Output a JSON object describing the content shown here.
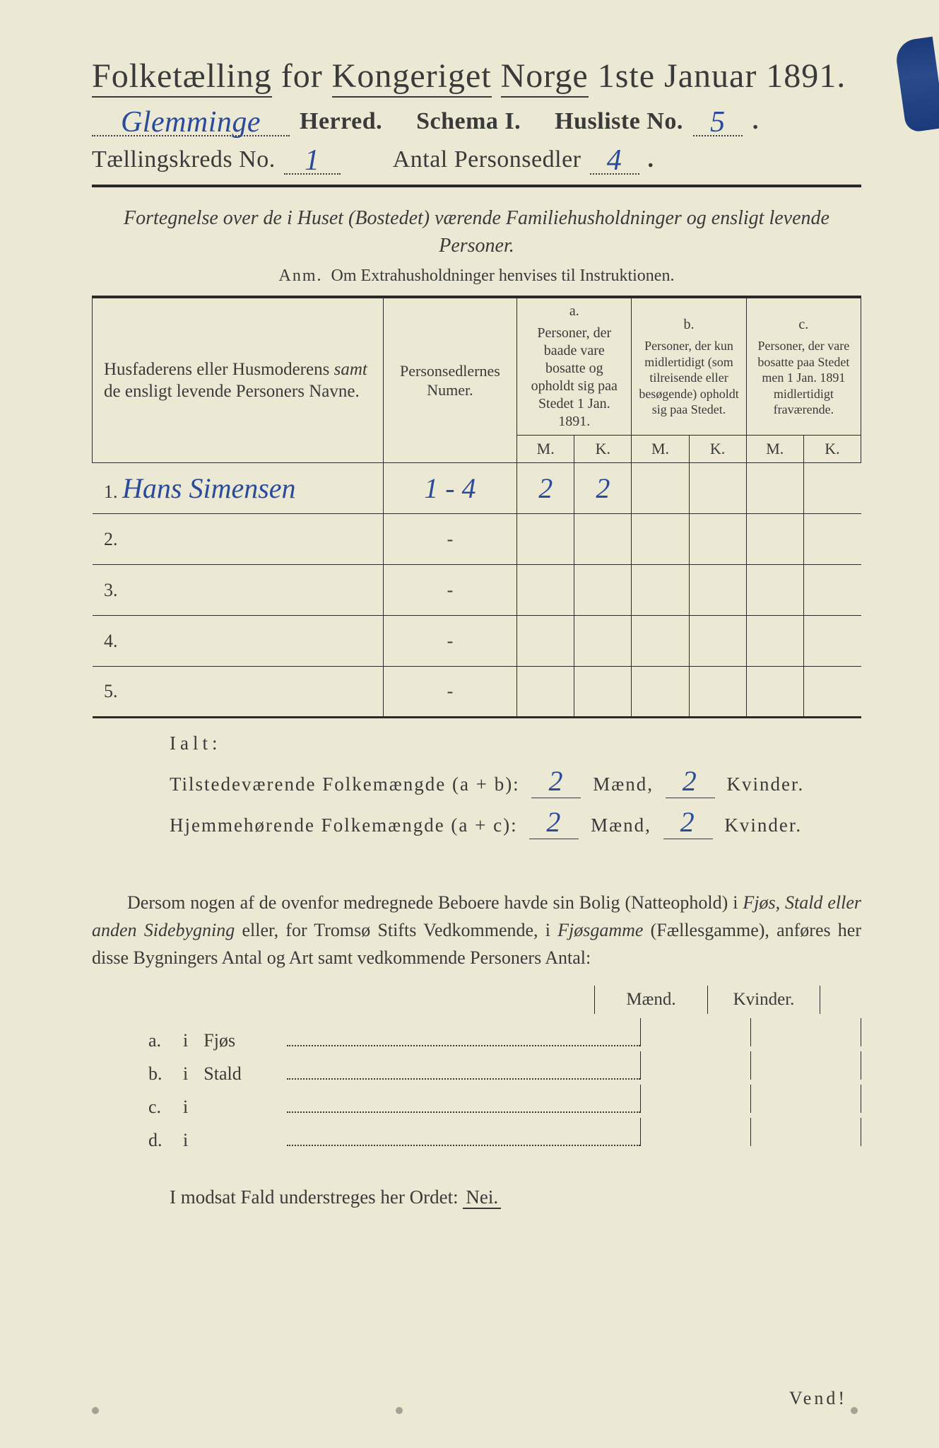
{
  "colors": {
    "paper": "#ebe8d4",
    "ink": "#3a3a3a",
    "ink_dark": "#2a2a2a",
    "handwriting": "#2a4a9a",
    "edge_mark": "#1a3a7a",
    "background": "#1a1a1a"
  },
  "typography": {
    "title_fontsize": 48,
    "body_fontsize": 26,
    "header_fontsize": 34,
    "table_header_fontsize": 20,
    "handwriting_fontsize": 40
  },
  "title": {
    "text": "Folketælling for Kongeriget Norge 1ste Januar 1891.",
    "words_underlined": [
      "Folketælling",
      "Kongeriget",
      "Norge"
    ]
  },
  "header": {
    "herred_handwritten": "Glemminge",
    "herred_label": "Herred.",
    "schema_label": "Schema I.",
    "husliste_label": "Husliste No.",
    "husliste_no_handwritten": "5",
    "taellingskreds_label": "Tællingskreds No.",
    "taellingskreds_no_handwritten": "1",
    "antal_label": "Antal Personsedler",
    "antal_handwritten": "4"
  },
  "subtitle_italic": "Fortegnelse over de i Huset (Bostedet) værende Familiehusholdninger og ensligt levende Personer.",
  "anm": {
    "label": "Anm.",
    "text": "Om Extrahusholdninger henvises til Instruktionen."
  },
  "table": {
    "col1_header": "Husfaderens eller Husmoderens samt de ensligt levende Personers Navne.",
    "col1_italic_word": "samt",
    "col2_header": "Personsedlernes Numer.",
    "col_a": {
      "letter": "a.",
      "text": "Personer, der baade vare bosatte og opholdt sig paa Stedet 1 Jan. 1891."
    },
    "col_b": {
      "letter": "b.",
      "text": "Personer, der kun midlertidigt (som tilreisende eller besøgende) opholdt sig paa Stedet."
    },
    "col_c": {
      "letter": "c.",
      "text": "Personer, der vare bosatte paa Stedet men 1 Jan. 1891 midlertidigt fraværende."
    },
    "mk_labels": {
      "m": "M.",
      "k": "K."
    },
    "rows": [
      {
        "num": "1.",
        "name_handwritten": "Hans Simensen",
        "sedler": "1 - 4",
        "a_m": "2",
        "a_k": "2",
        "b_m": "",
        "b_k": "",
        "c_m": "",
        "c_k": ""
      },
      {
        "num": "2.",
        "name_handwritten": "",
        "sedler": "-",
        "a_m": "",
        "a_k": "",
        "b_m": "",
        "b_k": "",
        "c_m": "",
        "c_k": ""
      },
      {
        "num": "3.",
        "name_handwritten": "",
        "sedler": "-",
        "a_m": "",
        "a_k": "",
        "b_m": "",
        "b_k": "",
        "c_m": "",
        "c_k": ""
      },
      {
        "num": "4.",
        "name_handwritten": "",
        "sedler": "-",
        "a_m": "",
        "a_k": "",
        "b_m": "",
        "b_k": "",
        "c_m": "",
        "c_k": ""
      },
      {
        "num": "5.",
        "name_handwritten": "",
        "sedler": "-",
        "a_m": "",
        "a_k": "",
        "b_m": "",
        "b_k": "",
        "c_m": "",
        "c_k": ""
      }
    ]
  },
  "totals": {
    "ialt_label": "Ialt:",
    "row1_label": "Tilstedeværende Folkemængde (a + b):",
    "row1_m": "2",
    "row1_k": "2",
    "row2_label": "Hjemmehørende Folkemængde (a + c):",
    "row2_m": "2",
    "row2_k": "2",
    "maend_label": "Mænd,",
    "kvinder_label": "Kvinder."
  },
  "paragraph": "Dersom nogen af de ovenfor medregnede Beboere havde sin Bolig (Natteophold) i Fjøs, Stald eller anden Sidebygning eller, for Tromsø Stifts Vedkommende, i Fjøsgamme (Fællesgamme), anføres her disse Bygningers Antal og Art samt vedkommende Personers Antal:",
  "paragraph_italics": [
    "Fjøs, Stald eller anden Sidebygning",
    "Fjøsgamme"
  ],
  "mk_section_labels": {
    "maend": "Mænd.",
    "kvinder": "Kvinder."
  },
  "abcd_rows": [
    {
      "lbl": "a.",
      "i": "i",
      "word": "Fjøs"
    },
    {
      "lbl": "b.",
      "i": "i",
      "word": "Stald"
    },
    {
      "lbl": "c.",
      "i": "i",
      "word": ""
    },
    {
      "lbl": "d.",
      "i": "i",
      "word": ""
    }
  ],
  "last_line": {
    "text": "I modsat Fald understreges her Ordet:",
    "nei": "Nei."
  },
  "vend": "Vend!"
}
